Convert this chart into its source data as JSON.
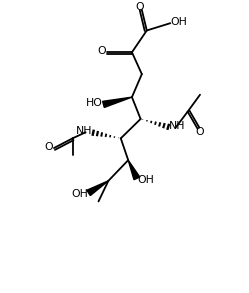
{
  "bg": "#ffffff",
  "lc": "#000000",
  "lw": 1.3,
  "fs": 7.5,
  "figsize": [
    2.49,
    2.93
  ],
  "dpi": 100,
  "xlim": [
    0,
    10
  ],
  "ylim": [
    0,
    12
  ]
}
